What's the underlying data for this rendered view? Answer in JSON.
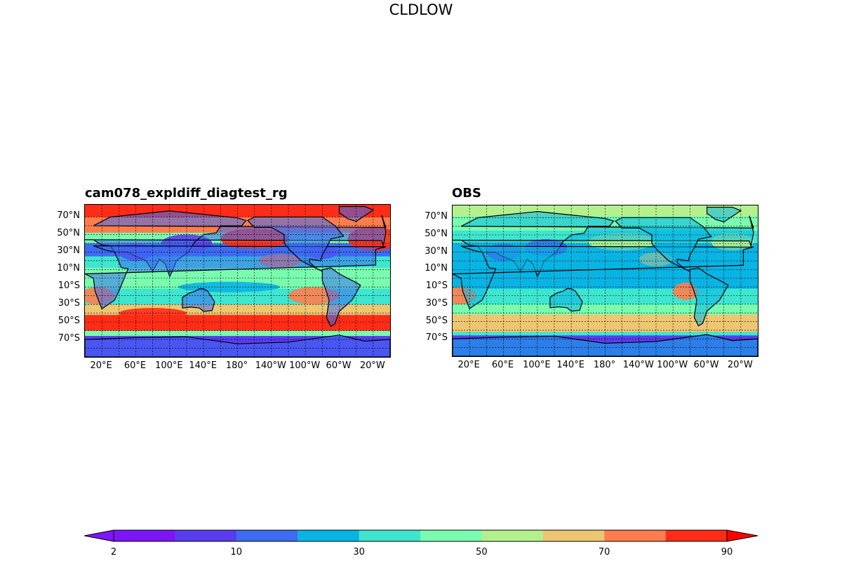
{
  "title": "CLDLOW",
  "panels": [
    {
      "title": "cam078_expldiff_diagtest_rg"
    },
    {
      "title": "OBS"
    }
  ],
  "lat_ticks": [
    "70°N",
    "50°N",
    "30°N",
    "10°N",
    "10°S",
    "30°S",
    "50°S",
    "70°S"
  ],
  "lon_ticks": [
    "20°E",
    "60°E",
    "100°E",
    "140°E",
    "180°",
    "140°W",
    "100°W",
    "60°W",
    "20°W"
  ],
  "colorbar": {
    "levels": [
      2,
      5,
      10,
      20,
      30,
      40,
      50,
      60,
      70,
      80,
      90
    ],
    "tick_labels": [
      "2",
      "10",
      "30",
      "50",
      "70",
      "90"
    ],
    "colors": [
      "#7c16f7",
      "#5a3cf0",
      "#3d6cf2",
      "#07b4e4",
      "#3ee5cf",
      "#79fcb0",
      "#b4f18c",
      "#eec672",
      "#ff7d4d",
      "#ff2c17",
      "#ff0000"
    ],
    "extend": "both"
  }
}
